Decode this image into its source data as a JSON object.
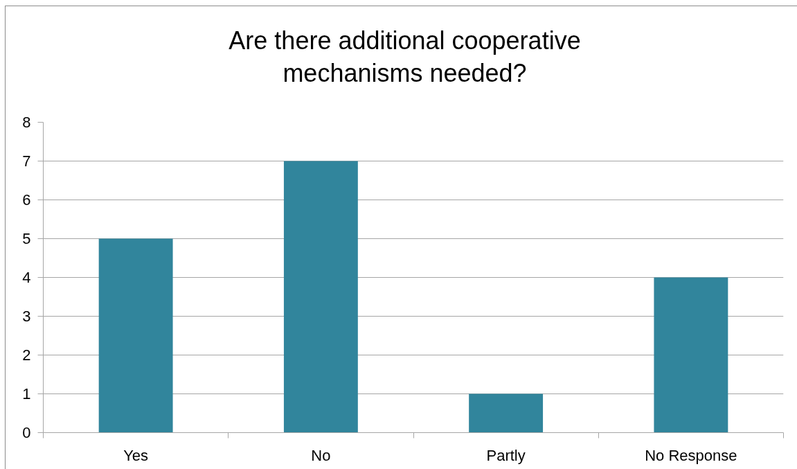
{
  "chart_data": {
    "type": "bar",
    "title": "Are there additional cooperative mechanisms needed?",
    "categories": [
      "Yes",
      "No",
      "Partly",
      "No Response"
    ],
    "values": [
      5,
      7,
      1,
      4
    ],
    "color": "#31859c",
    "ylim": [
      0,
      8
    ],
    "yticks": [
      0,
      1,
      2,
      3,
      4,
      5,
      6,
      7,
      8
    ],
    "grid": "y"
  }
}
